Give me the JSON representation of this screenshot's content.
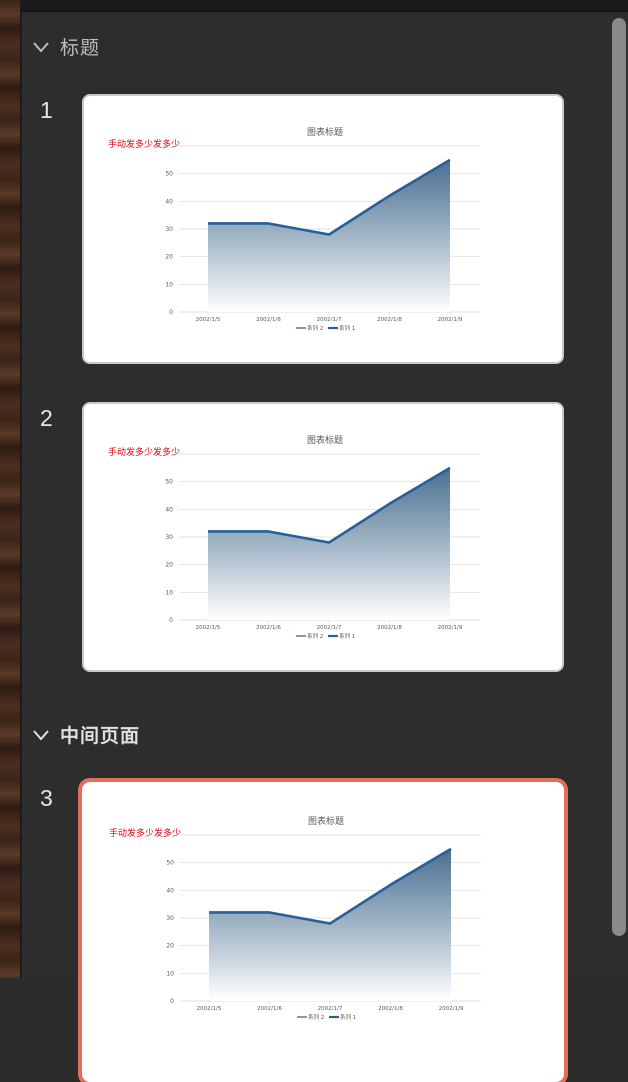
{
  "sections": [
    {
      "title": "标题",
      "slides": [
        1,
        2
      ]
    },
    {
      "title": "中间页面",
      "slides": [
        3
      ]
    }
  ],
  "slides": [
    {
      "number": "1",
      "note": "手动发多少发多少"
    },
    {
      "number": "2",
      "note": "手动发多少发多少"
    },
    {
      "number": "3",
      "note": "手动发多少发多少",
      "selected": true
    }
  ],
  "chart_data": {
    "type": "area",
    "title": "图表标题",
    "categories": [
      "2002/1/5",
      "2002/1/6",
      "2002/1/7",
      "2002/1/8",
      "2002/1/9"
    ],
    "series": [
      {
        "name": "系列 2",
        "values": [
          32,
          32,
          28,
          42,
          55
        ]
      },
      {
        "name": "系列 1",
        "values": [
          32,
          32,
          28,
          42,
          55
        ]
      }
    ],
    "ylim": [
      0,
      60
    ],
    "yticks": [
      "0",
      "10",
      "20",
      "30",
      "40",
      "50"
    ],
    "grid": true,
    "legend": "bottom"
  },
  "colors": {
    "accent": "#e0705a",
    "series_line": "#265f99",
    "note": "#e0000f"
  }
}
